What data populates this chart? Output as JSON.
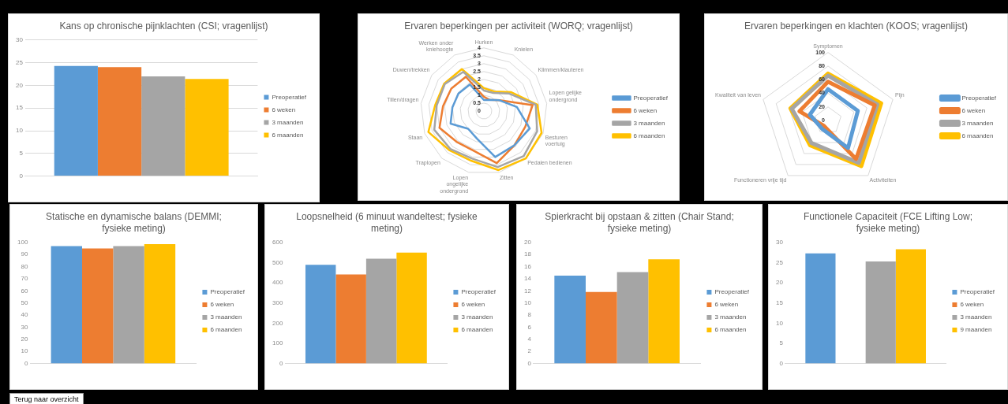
{
  "chart_data": [
    {
      "type": "bar",
      "title": "Kans op chronische pijnklachten (CSI; vragenlijst)",
      "categories": [
        null
      ],
      "ylim": [
        0,
        30
      ],
      "yticks": [
        0,
        5,
        10,
        15,
        20,
        25,
        30
      ],
      "grid": "y",
      "legend": "right",
      "series": [
        {
          "name": "Preoperatief",
          "color": "#5b9bd5",
          "values": [
            24.3
          ]
        },
        {
          "name": "6 weken",
          "color": "#ed7d31",
          "values": [
            24.0
          ]
        },
        {
          "name": "3 maanden",
          "color": "#a5a5a5",
          "values": [
            22.0
          ]
        },
        {
          "name": "6 maanden",
          "color": "#ffc000",
          "values": [
            21.4
          ]
        }
      ]
    },
    {
      "type": "radar",
      "title": "Ervaren beperkingen per activiteit (WORQ; vragenlijst)",
      "categories": [
        "Hurken",
        "Knielen",
        "Klimmen/klauteren",
        "Lopen gelijke ondergrond",
        "Besturen voertuig",
        "Pedalen bedienen",
        "Zitten",
        "Lopen ongelijke ondergrond",
        "Traplopen",
        "Staan",
        "Tillen/dragen",
        "Duwen/trekken",
        "Werken onder kniehoogte"
      ],
      "ylim": [
        0,
        4
      ],
      "yticks": [
        0,
        0.5,
        1,
        1.5,
        2,
        2.5,
        3,
        3.5,
        4
      ],
      "grid": true,
      "legend": "right",
      "marker": "none",
      "series": [
        {
          "name": "Preoperatief",
          "color": "#5b9bd5",
          "values": [
            0.7,
            0.8,
            1.2,
            2.1,
            3.1,
            2.9,
            3.0,
            1.8,
            1.5,
            2.25,
            2.0,
            1.95,
            1.9
          ]
        },
        {
          "name": "6 weken",
          "color": "#ed7d31",
          "values": [
            0.9,
            0.8,
            1.2,
            3.1,
            2.8,
            2.9,
            3.4,
            2.6,
            2.6,
            3.0,
            2.6,
            2.5,
            2.45
          ]
        },
        {
          "name": "3 maanden",
          "color": "#a5a5a5",
          "values": [
            1.3,
            1.3,
            1.95,
            3.3,
            3.6,
            3.8,
            3.65,
            3.1,
            3.2,
            3.35,
            3.0,
            3.0,
            2.8
          ]
        },
        {
          "name": "6 maanden",
          "color": "#ffc000",
          "values": [
            1.45,
            1.4,
            2.1,
            3.4,
            3.9,
            4.0,
            3.85,
            3.25,
            3.3,
            3.75,
            3.1,
            3.05,
            3.0
          ]
        }
      ]
    },
    {
      "type": "radar",
      "title": "Ervaren beperkingen en klachten (KOOS; vragenlijst)",
      "categories": [
        "Symptomen",
        "Pijn",
        "Activiteiten",
        "Functioneren vrije tijd",
        "Kwaliteit van leven"
      ],
      "ylim": [
        0,
        100
      ],
      "yticks": [
        0,
        20,
        40,
        60,
        80,
        100
      ],
      "grid": true,
      "legend": "right",
      "marker": "none",
      "series": [
        {
          "name": "Preoperatief",
          "color": "#5b9bd5",
          "values": [
            46,
            46,
            50,
            15,
            28
          ]
        },
        {
          "name": "6 weken",
          "color": "#ed7d31",
          "values": [
            57,
            72,
            70,
            10,
            44
          ]
        },
        {
          "name": "3 maanden",
          "color": "#a5a5a5",
          "values": [
            66,
            76,
            77,
            41,
            56
          ]
        },
        {
          "name": "6 maanden",
          "color": "#ffc000",
          "values": [
            69,
            82,
            83,
            45,
            58
          ]
        }
      ]
    },
    {
      "type": "bar",
      "title": "Statische en dynamische balans (DEMMI; fysieke meting)",
      "categories": [
        null
      ],
      "ylim": [
        0,
        100
      ],
      "yticks": [
        0,
        10,
        20,
        30,
        40,
        50,
        60,
        70,
        80,
        90,
        100
      ],
      "legend": "right",
      "series": [
        {
          "name": "Preoperatief",
          "color": "#5b9bd5",
          "values": [
            97
          ]
        },
        {
          "name": "6 weken",
          "color": "#ed7d31",
          "values": [
            95
          ]
        },
        {
          "name": "3 maanden",
          "color": "#a5a5a5",
          "values": [
            97
          ]
        },
        {
          "name": "6 maanden",
          "color": "#ffc000",
          "values": [
            98.5
          ]
        }
      ]
    },
    {
      "type": "bar",
      "title": "Loopsnelheid (6 minuut wandeltest; fysieke meting)",
      "categories": [
        null
      ],
      "ylim": [
        0,
        600
      ],
      "yticks": [
        0,
        100,
        200,
        300,
        400,
        500,
        600
      ],
      "legend": "right",
      "series": [
        {
          "name": "Preoperatief",
          "color": "#5b9bd5",
          "values": [
            489
          ]
        },
        {
          "name": "6 weken",
          "color": "#ed7d31",
          "values": [
            441
          ]
        },
        {
          "name": "3 maanden",
          "color": "#a5a5a5",
          "values": [
            519
          ]
        },
        {
          "name": "6 maanden",
          "color": "#ffc000",
          "values": [
            549
          ]
        }
      ]
    },
    {
      "type": "bar",
      "title": "Spierkracht bij opstaan & zitten (Chair Stand; fysieke meting)",
      "categories": [
        null
      ],
      "ylim": [
        0,
        20
      ],
      "yticks": [
        0,
        2,
        4,
        6,
        8,
        10,
        12,
        14,
        16,
        18,
        20
      ],
      "legend": "right",
      "series": [
        {
          "name": "Preoperatief",
          "color": "#5b9bd5",
          "values": [
            14.5
          ]
        },
        {
          "name": "6 weken",
          "color": "#ed7d31",
          "values": [
            11.8
          ]
        },
        {
          "name": "3 maanden",
          "color": "#a5a5a5",
          "values": [
            15.1
          ]
        },
        {
          "name": "6 maanden",
          "color": "#ffc000",
          "values": [
            17.2
          ]
        }
      ]
    },
    {
      "type": "bar",
      "title": "Functionele Capaciteit (FCE Lifting Low; fysieke meting)",
      "categories": [
        null
      ],
      "ylim": [
        0,
        30
      ],
      "yticks": [
        0,
        5,
        10,
        15,
        20,
        25,
        30
      ],
      "legend": "right",
      "series": [
        {
          "name": "Preoperatief",
          "color": "#5b9bd5",
          "values": [
            27.3
          ]
        },
        {
          "name": "6 weken",
          "color": "#ed7d31",
          "values": [
            null
          ]
        },
        {
          "name": "3 maanden",
          "color": "#a5a5a5",
          "values": [
            25.3
          ]
        },
        {
          "name": "9 maanden",
          "color": "#ffc000",
          "values": [
            28.3
          ]
        }
      ]
    },
    {
      "type": "other",
      "title": "Terug naar overzicht"
    }
  ]
}
